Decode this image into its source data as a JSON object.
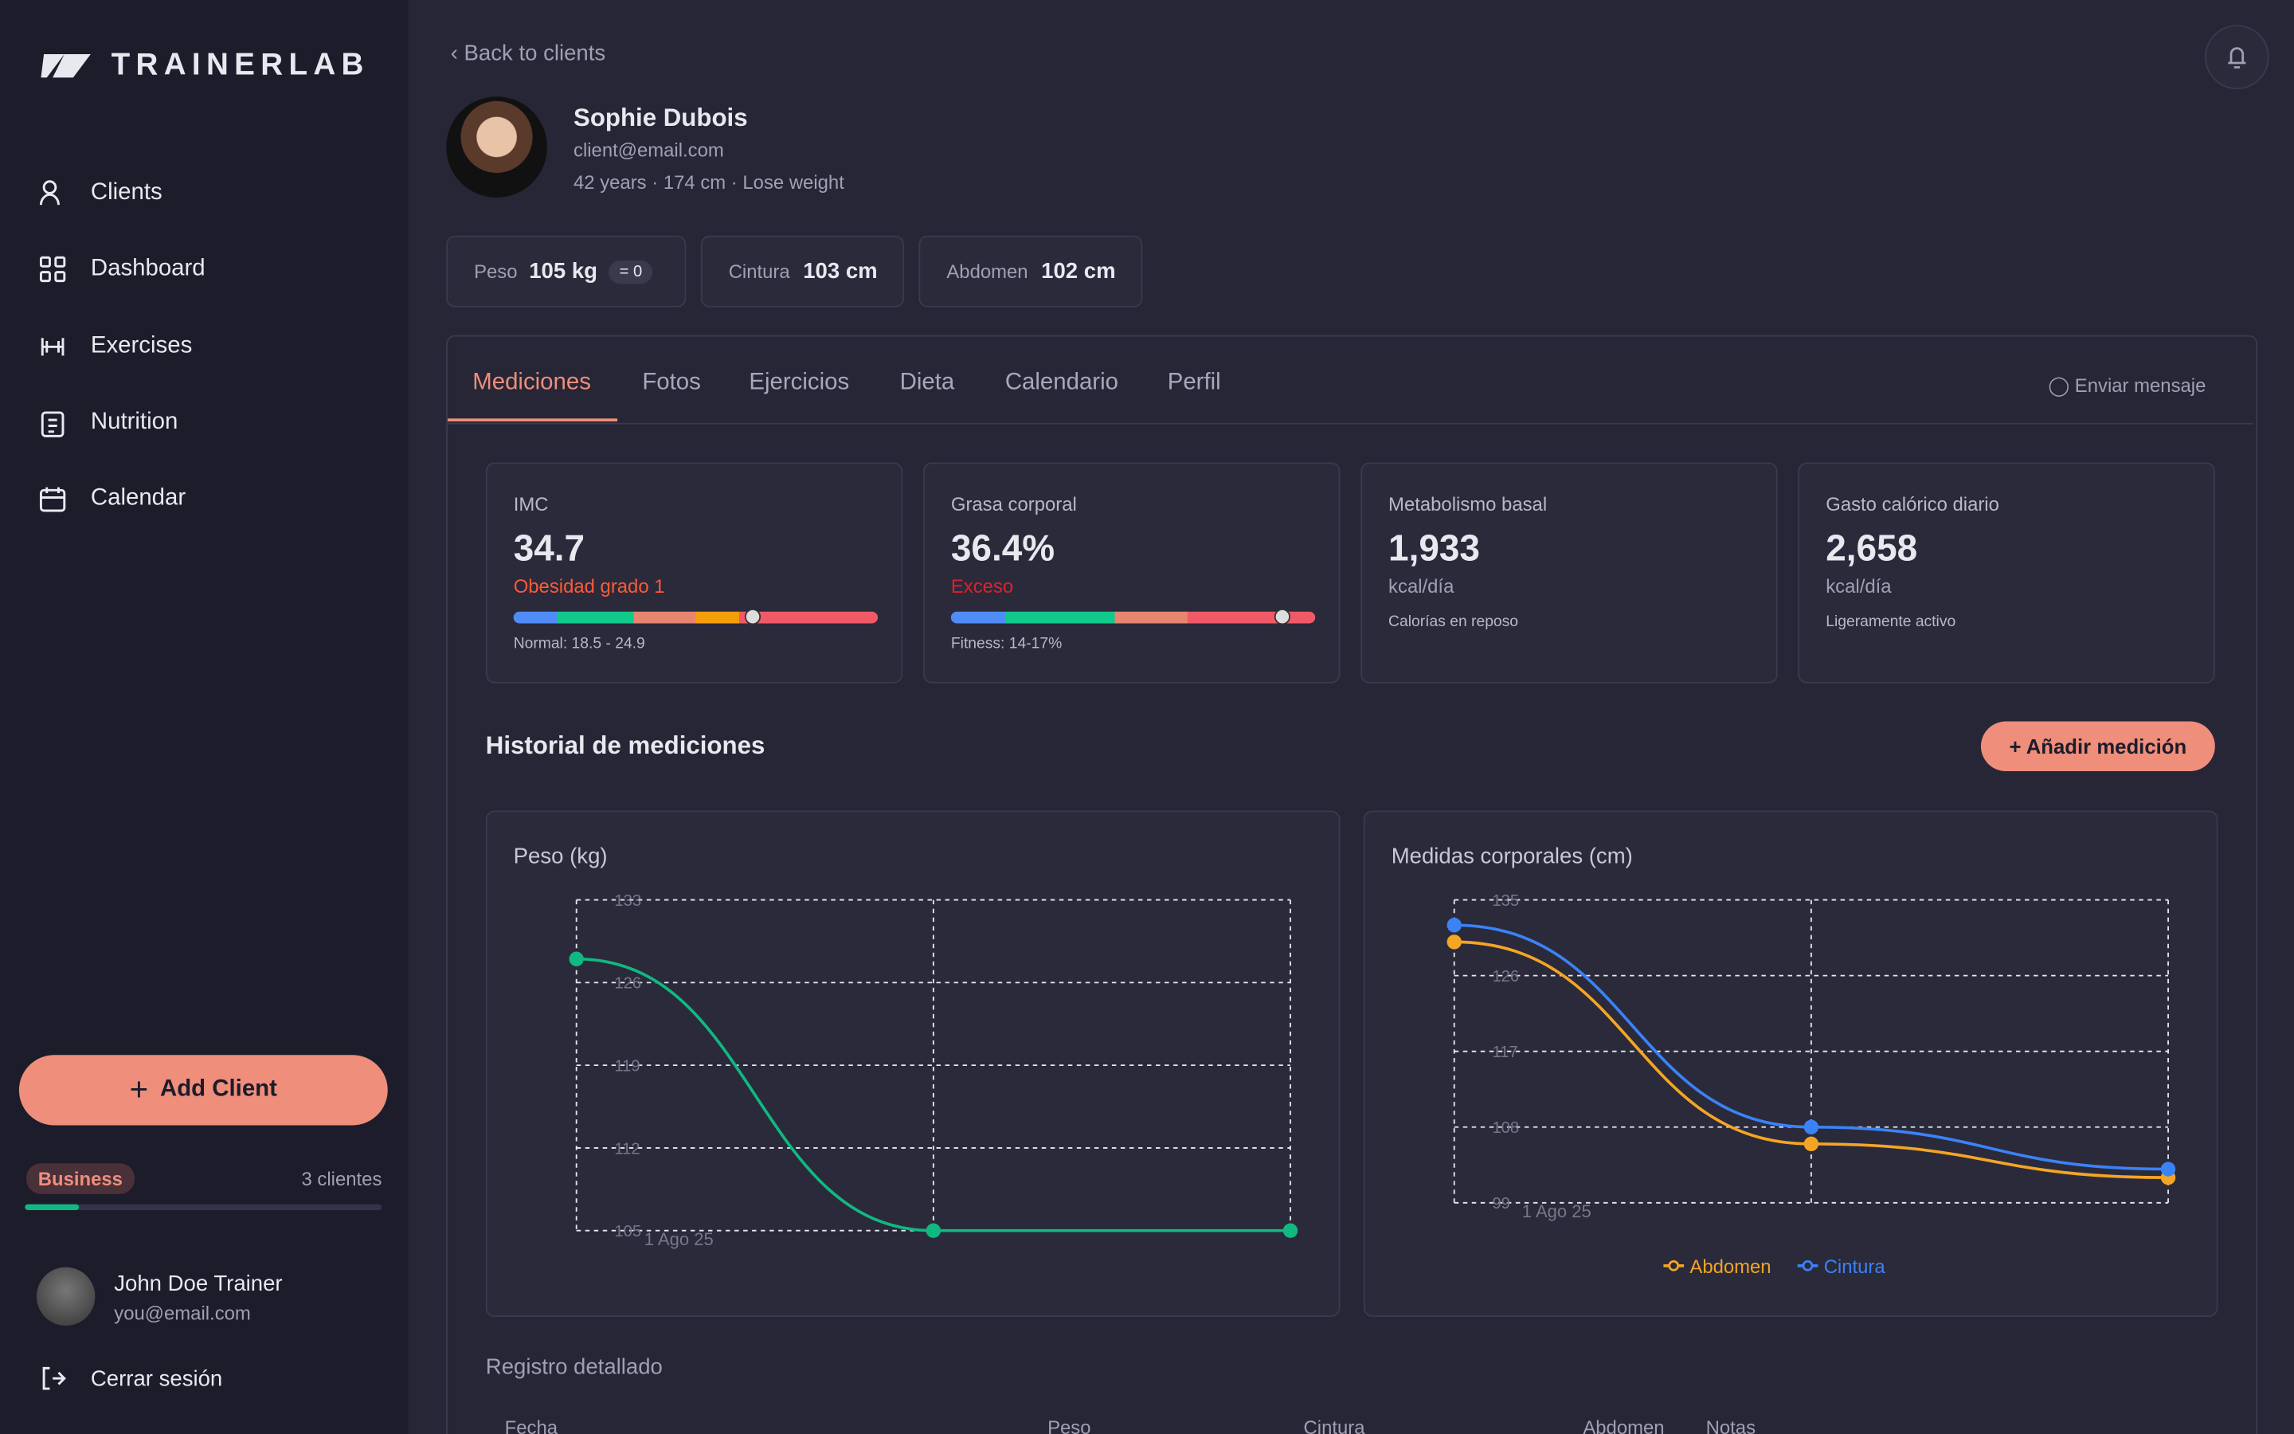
{
  "sidebar": {
    "brand": "TRAINERLAB",
    "nav": [
      "Clients",
      "Dashboard",
      "Exercises",
      "Nutrition",
      "Calendar"
    ],
    "add_client": "Add Client",
    "plan": "Business",
    "plan_count": "3 clientes",
    "user": {
      "name": "John Doe Trainer",
      "email": "you@email.com"
    },
    "logout": "Cerrar sesión"
  },
  "back": "Back to clients",
  "client": {
    "name": "Sophie Dubois",
    "email": "client@email.com",
    "details": [
      "42 years",
      "174 cm",
      "Lose weight"
    ]
  },
  "summary": [
    {
      "label": "Peso",
      "value": "105 kg",
      "badge": "= 0"
    },
    {
      "label": "Cintura",
      "value": "103 cm"
    },
    {
      "label": "Abdomen",
      "value": "102 cm"
    }
  ],
  "tabs": [
    "Mediciones",
    "Fotos",
    "Ejercicios",
    "Dieta",
    "Calendario",
    "Perfil"
  ],
  "send_message": "Enviar mensaje",
  "metrics": [
    {
      "label": "IMC",
      "value": "34.7",
      "status": "Obesidad grado 1",
      "note": "Normal: 18.5 - 24.9"
    },
    {
      "label": "Grasa corporal",
      "value": "36.4%",
      "status": "Exceso",
      "note": "Fitness: 14-17%"
    },
    {
      "label": "Metabolismo basal",
      "value": "1,933",
      "unit": "kcal/día",
      "note": "Calorías en reposo"
    },
    {
      "label": "Gasto calórico diario",
      "value": "2,658",
      "unit": "kcal/día",
      "note": "Ligeramente activo"
    }
  ],
  "history_title": "Historial de mediciones",
  "add_measure": "+ Añadir medición",
  "charts": [
    {
      "type": "line",
      "title": "Peso (kg)",
      "categories": [
        "1 Ago 25",
        null,
        null
      ],
      "ylim": [
        105,
        133
      ],
      "yticks": [
        133,
        126,
        119,
        112,
        105
      ],
      "grid": true,
      "series": [
        {
          "color": "#10b981",
          "values": [
            128,
            105,
            105
          ]
        }
      ]
    },
    {
      "type": "line",
      "title": "Medidas corporales (cm)",
      "categories": [
        "1 Ago 25",
        null,
        null
      ],
      "ylim": [
        99,
        135
      ],
      "yticks": [
        135,
        126,
        117,
        108,
        99
      ],
      "grid": true,
      "legend": "bottom",
      "series": [
        {
          "name": "Abdomen",
          "color": "#f5a524",
          "values": [
            130,
            106,
            102
          ]
        },
        {
          "name": "Cintura",
          "color": "#3b82f6",
          "values": [
            132,
            108,
            103
          ]
        }
      ]
    }
  ],
  "table": {
    "title": "Registro detallado",
    "columns": [
      "Fecha",
      "Peso",
      "Cintura",
      "Abdomen",
      "Notas"
    ]
  }
}
